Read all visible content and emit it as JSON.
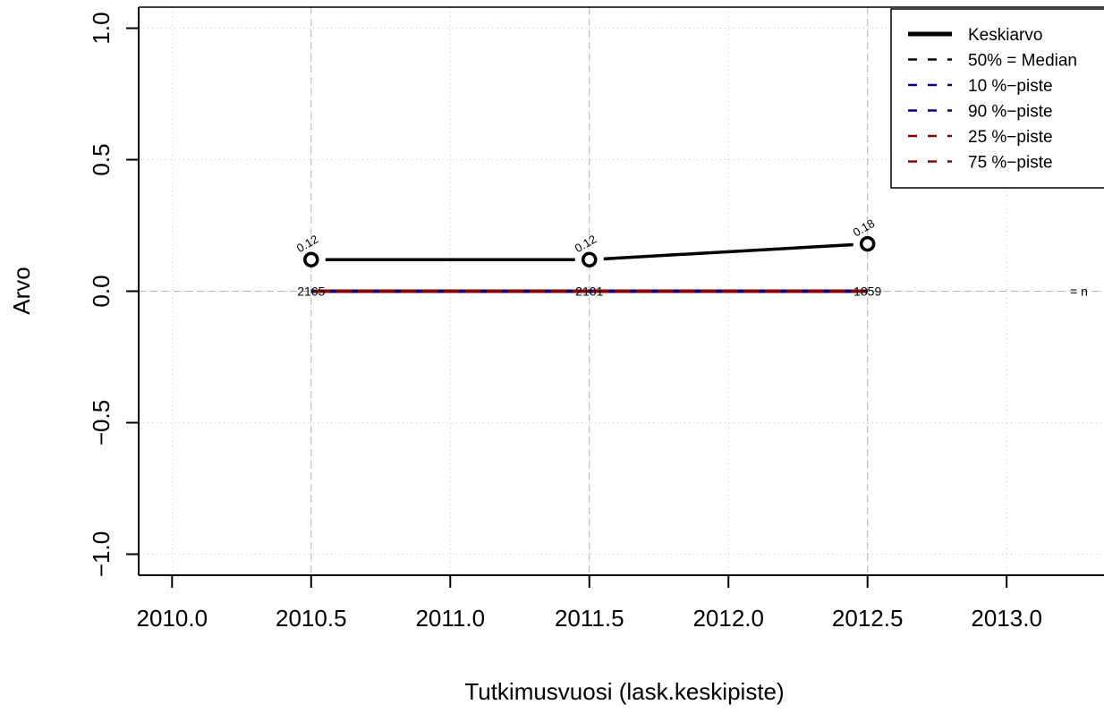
{
  "chart_data": {
    "type": "line",
    "xlabel": "Tutkimusvuosi (lask.keskipiste)",
    "ylabel": "Arvo",
    "xlim": [
      2009.88,
      2013.35
    ],
    "ylim": [
      -1.08,
      1.08
    ],
    "x_ticks": [
      2010.0,
      2010.5,
      2011.0,
      2011.5,
      2012.0,
      2012.5,
      2013.0
    ],
    "x_tick_labels": [
      "2010.0",
      "2010.5",
      "2011.0",
      "2011.5",
      "2012.0",
      "2012.5",
      "2013.0"
    ],
    "y_ticks": [
      -1.0,
      -0.5,
      0.0,
      0.5,
      1.0
    ],
    "y_tick_labels": [
      "−1.0",
      "−0.5",
      "0.0",
      "0.5",
      "1.0"
    ],
    "grid": true,
    "legend_position": "top-right",
    "x": [
      2010.5,
      2011.5,
      2012.5
    ],
    "series": [
      {
        "name": "Keskiarvo",
        "values": [
          0.12,
          0.12,
          0.18
        ],
        "color": "#000000",
        "style": "solid"
      },
      {
        "name": "50% = Median",
        "values": [
          0.0,
          0.0,
          0.0
        ],
        "color": "#000000",
        "style": "dashed"
      },
      {
        "name": "10 %−piste",
        "values": [
          0.0,
          0.0,
          0.0
        ],
        "color": "#00008b",
        "style": "dashed"
      },
      {
        "name": "90 %−piste",
        "values": [
          0.0,
          0.0,
          0.0
        ],
        "color": "#00008b",
        "style": "dashed"
      },
      {
        "name": "25 %−piste",
        "values": [
          0.0,
          0.0,
          0.0
        ],
        "color": "#8b0000",
        "style": "dashed"
      },
      {
        "name": "75 %−piste",
        "values": [
          0.0,
          0.0,
          0.0
        ],
        "color": "#8b0000",
        "style": "dashed"
      }
    ],
    "mean_labels": [
      "0.12",
      "0.12",
      "0.18"
    ],
    "n_values": [
      "2165",
      "2101",
      "1859"
    ],
    "n_label": "= n"
  }
}
